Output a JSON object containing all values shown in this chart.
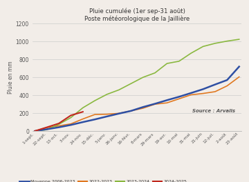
{
  "title_line1": "Pluie cumulée (1er sep-31 août)",
  "title_line2": "Poste météorologique de la Jaillière",
  "ylabel": "Pluie en mm",
  "source_text": "Source : Arvalis",
  "ylim": [
    0,
    1200
  ],
  "yticks": [
    0,
    200,
    400,
    600,
    800,
    1000,
    1200
  ],
  "xtick_labels": [
    "1-sept.",
    "22-sept.",
    "13-oct.",
    "3-nov.",
    "24-nov.",
    "15-déc.",
    "5-janv.",
    "26-janv.",
    "16-févr.",
    "8-mars",
    "29-mars",
    "19-avr.",
    "10-mai",
    "31-mai",
    "21-juin",
    "12-juil.",
    "2-août",
    "23-août"
  ],
  "colors": {
    "moyenne": "#2e4fa3",
    "2022_2023": "#e07820",
    "2023_2024": "#8ab840",
    "2024_2025": "#c0281e"
  },
  "legend_labels": [
    "Moyenne 2006-2023",
    "2022-2023",
    "2023-2024",
    "2024-2025"
  ],
  "background_color": "#f2ede8",
  "x_indices_full": [
    0,
    1,
    2,
    3,
    4,
    5,
    6,
    7,
    8,
    9,
    10,
    11,
    12,
    13,
    14,
    15,
    16,
    17
  ],
  "moyenne_2006_2023": [
    0,
    20,
    42,
    68,
    100,
    130,
    163,
    195,
    225,
    268,
    305,
    345,
    383,
    425,
    468,
    520,
    570,
    720
  ],
  "y_2022_2023": [
    0,
    38,
    58,
    80,
    135,
    185,
    188,
    198,
    225,
    255,
    300,
    315,
    360,
    405,
    420,
    440,
    505,
    605
  ],
  "y_2023_2024": [
    0,
    15,
    75,
    150,
    260,
    340,
    410,
    460,
    530,
    600,
    650,
    755,
    780,
    870,
    945,
    980,
    1005,
    1025
  ],
  "x_indices_short": [
    0,
    1,
    2,
    3,
    4
  ],
  "y_2024_2025": [
    0,
    42,
    85,
    175,
    215
  ]
}
